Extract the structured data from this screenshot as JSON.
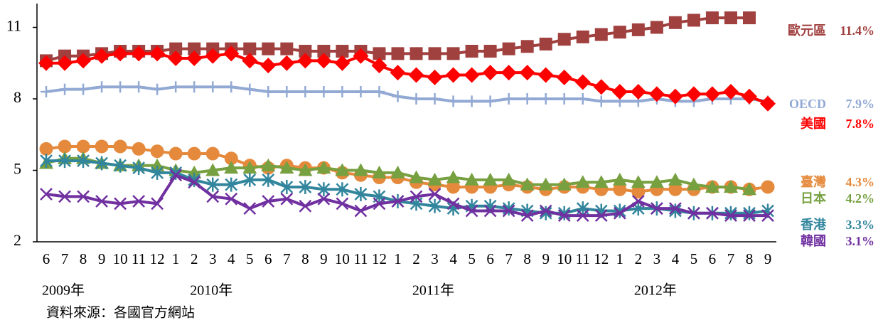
{
  "chart_data": {
    "type": "line",
    "categories": [
      "6",
      "7",
      "8",
      "9",
      "10",
      "11",
      "12",
      "1",
      "2",
      "3",
      "4",
      "5",
      "6",
      "7",
      "8",
      "9",
      "10",
      "11",
      "12",
      "1",
      "2",
      "3",
      "4",
      "5",
      "6",
      "7",
      "8",
      "9",
      "10",
      "11",
      "12",
      "1",
      "2",
      "3",
      "4",
      "5",
      "6",
      "7",
      "8",
      "9"
    ],
    "year_labels": [
      "2009年",
      "2010年",
      "2011年",
      "2012年"
    ],
    "source": "資料來源：各國官方網站",
    "ylim": [
      2,
      12
    ],
    "yticks": [
      2,
      5,
      8,
      11
    ],
    "series": [
      {
        "name": "歐元區",
        "color": "#a0403f",
        "marker": "square",
        "values": [
          9.6,
          9.8,
          9.8,
          9.9,
          10.0,
          10.0,
          10.0,
          10.1,
          10.1,
          10.1,
          10.1,
          10.1,
          10.1,
          10.1,
          10.0,
          10.0,
          10.0,
          10.0,
          9.9,
          9.9,
          9.9,
          9.9,
          9.9,
          10.0,
          10.0,
          10.1,
          10.2,
          10.3,
          10.5,
          10.6,
          10.7,
          10.8,
          10.9,
          11.0,
          11.2,
          11.3,
          11.4,
          11.4,
          11.4,
          null
        ],
        "value_labels": [
          null,
          null,
          null,
          null,
          null,
          null,
          null,
          null,
          null,
          null,
          null,
          null,
          null,
          null,
          null,
          null,
          null,
          null,
          null,
          null,
          null,
          null,
          null,
          null,
          null,
          null,
          null,
          null,
          null,
          null,
          null,
          null,
          null,
          null,
          null,
          null,
          null,
          null,
          "11.4%",
          null
        ]
      },
      {
        "name": "OECD",
        "color": "#92a9d4",
        "marker": "plus",
        "values": [
          8.3,
          8.4,
          8.4,
          8.5,
          8.5,
          8.5,
          8.4,
          8.5,
          8.5,
          8.5,
          8.5,
          8.4,
          8.3,
          8.3,
          8.3,
          8.3,
          8.3,
          8.3,
          8.3,
          8.1,
          8.0,
          8.0,
          7.9,
          7.9,
          7.9,
          8.0,
          8.0,
          8.0,
          8.0,
          8.0,
          7.9,
          7.9,
          7.9,
          8.0,
          7.9,
          7.9,
          8.0,
          8.0,
          8.0,
          7.9
        ],
        "value_labels": [
          null,
          null,
          null,
          null,
          null,
          null,
          null,
          null,
          null,
          null,
          null,
          null,
          null,
          null,
          null,
          null,
          null,
          null,
          null,
          null,
          null,
          null,
          null,
          null,
          null,
          null,
          null,
          null,
          null,
          null,
          null,
          null,
          null,
          null,
          null,
          null,
          null,
          null,
          null,
          "7.9%"
        ]
      },
      {
        "name": "美國",
        "color": "#ff0000",
        "marker": "diamond",
        "values": [
          9.5,
          9.5,
          9.6,
          9.8,
          9.9,
          9.9,
          9.9,
          9.7,
          9.7,
          9.8,
          9.9,
          9.6,
          9.4,
          9.5,
          9.6,
          9.6,
          9.5,
          9.8,
          9.4,
          9.1,
          9.0,
          8.9,
          9.0,
          9.0,
          9.1,
          9.1,
          9.1,
          9.0,
          8.9,
          8.7,
          8.5,
          8.3,
          8.3,
          8.2,
          8.1,
          8.2,
          8.2,
          8.3,
          8.1,
          7.8
        ],
        "value_labels": [
          null,
          null,
          null,
          null,
          null,
          null,
          null,
          null,
          null,
          null,
          null,
          null,
          null,
          null,
          null,
          null,
          null,
          null,
          null,
          null,
          null,
          null,
          null,
          null,
          null,
          null,
          null,
          null,
          null,
          null,
          null,
          null,
          null,
          null,
          null,
          null,
          null,
          null,
          null,
          "7.8%"
        ]
      },
      {
        "name": "臺灣",
        "color": "#e58a3c",
        "marker": "circle",
        "values": [
          5.9,
          6.0,
          6.0,
          6.0,
          6.0,
          5.9,
          5.8,
          5.7,
          5.7,
          5.7,
          5.5,
          5.2,
          5.1,
          5.2,
          5.1,
          5.1,
          4.9,
          4.8,
          4.7,
          4.7,
          4.5,
          4.4,
          4.3,
          4.3,
          4.3,
          4.4,
          4.3,
          4.2,
          4.3,
          4.3,
          4.2,
          4.2,
          4.1,
          4.2,
          4.2,
          4.2,
          4.3,
          4.3,
          4.2,
          4.3
        ],
        "value_labels": [
          null,
          null,
          null,
          null,
          null,
          null,
          null,
          null,
          null,
          null,
          null,
          null,
          null,
          null,
          null,
          null,
          null,
          null,
          null,
          null,
          null,
          null,
          null,
          null,
          null,
          null,
          null,
          null,
          null,
          null,
          null,
          null,
          null,
          null,
          null,
          null,
          null,
          null,
          null,
          "4.3%"
        ]
      },
      {
        "name": "日本",
        "color": "#77a040",
        "marker": "triangle",
        "values": [
          5.3,
          5.5,
          5.5,
          5.3,
          5.2,
          5.2,
          5.2,
          5.0,
          4.9,
          5.0,
          5.1,
          5.1,
          5.2,
          5.1,
          5.0,
          5.1,
          5.0,
          5.0,
          4.9,
          4.9,
          4.7,
          4.6,
          4.7,
          4.6,
          4.6,
          4.6,
          4.4,
          4.4,
          4.4,
          4.5,
          4.5,
          4.6,
          4.5,
          4.5,
          4.6,
          4.4,
          4.3,
          4.3,
          4.2,
          null
        ],
        "value_labels": [
          null,
          null,
          null,
          null,
          null,
          null,
          null,
          null,
          null,
          null,
          null,
          null,
          null,
          null,
          null,
          null,
          null,
          null,
          null,
          null,
          null,
          null,
          null,
          null,
          null,
          null,
          null,
          null,
          null,
          null,
          null,
          null,
          null,
          null,
          null,
          null,
          null,
          null,
          "4.2%",
          null
        ]
      },
      {
        "name": "香港",
        "color": "#31859c",
        "marker": "asterisk",
        "values": [
          5.4,
          5.4,
          5.4,
          5.3,
          5.2,
          5.1,
          4.9,
          4.9,
          4.6,
          4.4,
          4.4,
          4.6,
          4.6,
          4.3,
          4.3,
          4.2,
          4.2,
          4.0,
          3.9,
          3.7,
          3.6,
          3.5,
          3.4,
          3.5,
          3.5,
          3.4,
          3.3,
          3.2,
          3.2,
          3.4,
          3.3,
          3.3,
          3.4,
          3.4,
          3.3,
          3.2,
          3.2,
          3.2,
          3.2,
          3.3
        ],
        "value_labels": [
          null,
          null,
          null,
          null,
          null,
          null,
          null,
          null,
          null,
          null,
          null,
          null,
          null,
          null,
          null,
          null,
          null,
          null,
          null,
          null,
          null,
          null,
          null,
          null,
          null,
          null,
          null,
          null,
          null,
          null,
          null,
          null,
          null,
          null,
          null,
          null,
          null,
          null,
          null,
          "3.3%"
        ]
      },
      {
        "name": "韓國",
        "color": "#7030a0",
        "marker": "x",
        "values": [
          4.0,
          3.9,
          3.9,
          3.7,
          3.6,
          3.7,
          3.6,
          4.8,
          4.5,
          3.9,
          3.8,
          3.4,
          3.7,
          3.8,
          3.5,
          3.8,
          3.6,
          3.3,
          3.6,
          3.7,
          3.9,
          4.0,
          3.6,
          3.3,
          3.3,
          3.3,
          3.1,
          3.3,
          3.1,
          3.1,
          3.1,
          3.2,
          3.7,
          3.4,
          3.4,
          3.2,
          3.2,
          3.1,
          3.1,
          3.1
        ],
        "value_labels": [
          null,
          null,
          null,
          null,
          null,
          null,
          null,
          null,
          null,
          null,
          null,
          null,
          null,
          null,
          null,
          null,
          null,
          null,
          null,
          null,
          null,
          null,
          null,
          null,
          null,
          null,
          null,
          null,
          null,
          null,
          null,
          null,
          null,
          null,
          null,
          null,
          null,
          null,
          null,
          "3.1%"
        ]
      }
    ]
  }
}
